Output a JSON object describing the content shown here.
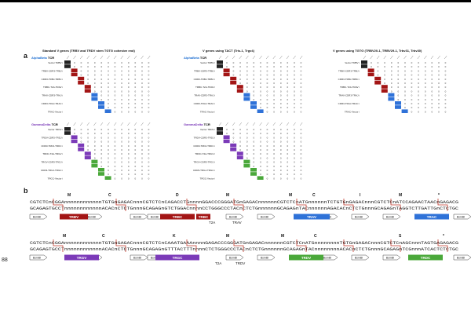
{
  "panel_a_label": "a",
  "panel_b_label": "b",
  "line_number": "88",
  "grids": [
    {
      "title": "Standard V genes (TRBV and TRDV stem TGTG cohesive end)",
      "sections": [
        {
          "prefix": "AlphaBeta",
          "suffix": " TCR",
          "rows": [
            "Vector TRBV i",
            "",
            "TRBV-CDR3-TRBJ i",
            "",
            "CDR3-TRBJ-TRBC i",
            "",
            "TRBC-T2A-TRAV i",
            "",
            "TRAV-CDR3-TRAJ i",
            "",
            "CDR3-TRAJ-TRAC i",
            "",
            "TRAC-Vector i"
          ]
        },
        {
          "prefix": "GammaDelta",
          "suffix": " TCR",
          "rows": [
            "Vector TRDV i",
            "",
            "TRDV-CDR3-TRDJ i",
            "",
            "CDR3-TRDJ-TRDC i",
            "",
            "TRDC-T2A-TRGV i",
            "",
            "TRGV-CDR3-TRGJ i",
            "",
            "CDR3-TRGJ-TRGC i",
            "",
            "TRGC-Vector i"
          ]
        }
      ]
    },
    {
      "title": "V genes using TACT (Tris-1, Trgv4)",
      "sections": [
        {
          "prefix": "AlphaBeta",
          "suffix": " TCR",
          "rows": [
            "Vector TRBV i",
            "",
            "TRBV-CDR3-TRBJ i",
            "",
            "CDR3-TRBJ-TRBC i",
            "",
            "TRBC-T2A-TRAV i",
            "",
            "TRAV-CDR3-TRAJ i",
            "",
            "CDR3-TRAJ-TRAC i",
            "",
            "TRAC-Vector i"
          ]
        },
        {
          "prefix": "GammaDelta",
          "suffix": " TCR",
          "rows": [
            "Vector TRDV i",
            "",
            "TRDV-CDR3-TRDJ i",
            "",
            "CDR3-TRDJ-TRDC i",
            "",
            "TRDC-T2A-TRGV i",
            "",
            "TRGV-CDR3-TRGJ i",
            "",
            "CDR3-TRGJ-TRGC i",
            "",
            "TRGC-Vector i"
          ]
        }
      ]
    },
    {
      "title": "V genes using TGTG (TRBV20-1, TRBV29-1, Trbv31, Trbv30)",
      "sections": [
        {
          "prefix": "",
          "suffix": "",
          "rows": [
            "Vector TRBV i",
            "",
            "TRBV-CDR3-TRBJ i",
            "",
            "CDR3-TRBJ-TRBC i",
            "",
            "TRBC-T2A-TRAV i",
            "",
            "TRAV-CDR3-TRAJ i",
            "",
            "CDR3-TRAJ-TRAC i",
            "",
            "TRAC-Vector i"
          ]
        }
      ]
    }
  ],
  "seq_rows": [
    {
      "aa": [
        "M",
        "C",
        "D",
        "M",
        "M",
        "C",
        "I",
        "M",
        "*"
      ],
      "top": "CGTCTCnCGGAnnnnnnnnnnnnTGTGnGAGACnnnCGTCTCnCAGACCTGnnnnGGACCCGGGATGnGAGACnnnnnnCGTCTCnATGnnnnnnTCTGTGnGAGACnnnCGTCTCnATCCAGAACTAACnGAGACG",
      "bottom": "GCAGAGTGCCTnnnnnnnnnnnnACACnCTCTGnnnGCAGAGnGTCTGGACnnnnCCTGGGCCCTACnCTCTGnnnnnnGCAGAGnTACnnnnnnAGACACnCTCTGnnnGCAGAGnTAGGTCTTGATTGnCTCTGC",
      "features": [
        {
          "label": "TRBV",
          "color": "#a31515"
        },
        {
          "label": "TRBC",
          "color": "#a31515"
        },
        {
          "label": "TRBC",
          "color": "#a31515"
        },
        {
          "label": "TRAV",
          "color": "#2f72d8"
        },
        {
          "label": "TRAC",
          "color": "#2f72d8"
        }
      ],
      "sublabels": [
        "T2A",
        "TRAV"
      ],
      "bam": [
        "BsmBI",
        "BsmBI",
        "BsmBI",
        "BsmBI",
        "BsmBI",
        "BsmBI",
        "BsmBI",
        "BsmBI",
        "BsmBI",
        "BsmBI"
      ]
    },
    {
      "aa": [
        "M",
        "C",
        "K",
        "M",
        "M",
        "C",
        "S",
        "*"
      ],
      "top": "CGTCTCnCGGAnnnnnnnnnnnnTGTGnGAGACnnnCGTCTCnCAAATGAAAnnnnGAGACCCGGGATGnGAGACnnnnnnCGTCTCnATGnnnnnnnnTGTGnGAGACnnnCGTCTCnAGCnnnTAGTGAGAGACG",
      "bottom": "GCAGAGTGCCTnnnnnnnnnnnnACACnCTCTGnnnGCAGAGnGTTTACTTTnnnnCTCTGGGCCCTACnCTCTGnnnnnnGCAGAGnTACnnnnnnnnACACnCTCTGnnnGCAGAGnTCGnnnATCACTCTCTGC",
      "features": [
        {
          "label": "TRGV",
          "color": "#7b3ab8"
        },
        {
          "label": "TRGC",
          "color": "#7b3ab8"
        },
        {
          "label": "TRDV",
          "color": "#4aa83a"
        },
        {
          "label": "TRDC",
          "color": "#4aa83a"
        }
      ],
      "sublabels": [
        "T2A",
        "TRDV"
      ],
      "bam": [
        "BsmBI",
        "BsmBI",
        "BsmBI",
        "BsmBI",
        "BsmBI",
        "BsmBI",
        "BsmBI",
        "BsmBI",
        "BsmBI",
        "BsmBI"
      ]
    }
  ],
  "colors": {
    "alphabeta_dark": "#a31515",
    "alphabeta_light": "#2f72d8",
    "gammadelta_purple": "#7b3ab8",
    "gammadelta_green": "#4aa83a",
    "black_cell": "#222222"
  }
}
